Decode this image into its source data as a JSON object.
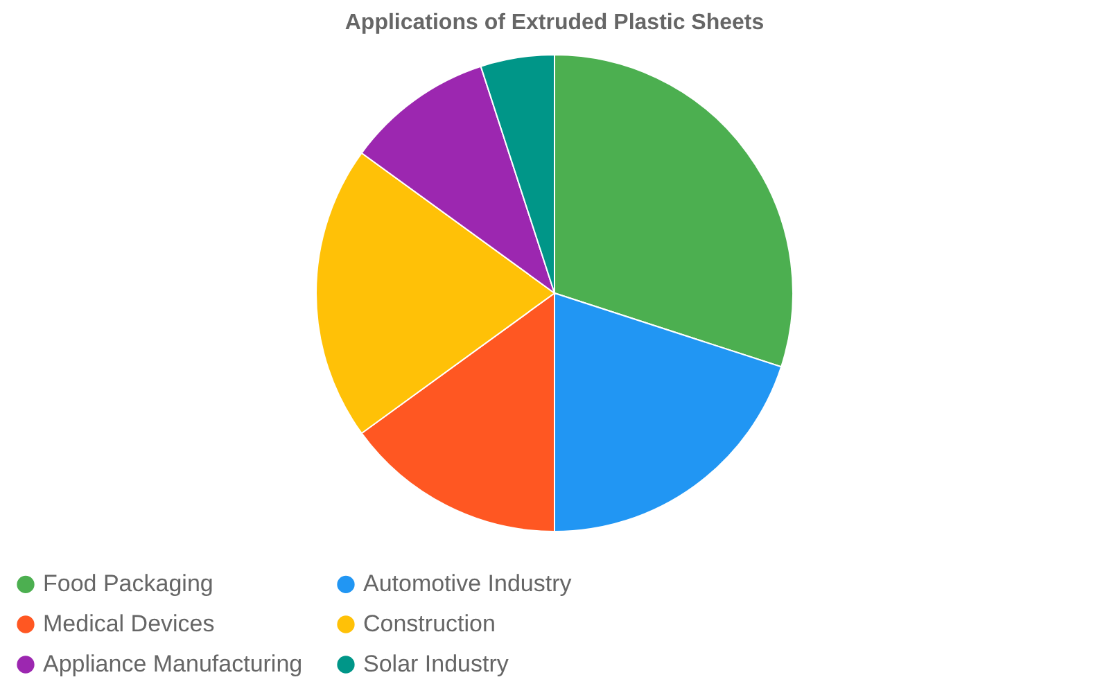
{
  "chart_data": {
    "type": "pie",
    "title": "Applications of Extruded Plastic Sheets",
    "categories": [
      "Food Packaging",
      "Automotive Industry",
      "Medical Devices",
      "Construction",
      "Appliance Manufacturing",
      "Solar Industry"
    ],
    "values": [
      30,
      20,
      15,
      20,
      10,
      5
    ],
    "colors": [
      "#4caf50",
      "#2196f3",
      "#ff5722",
      "#ffc107",
      "#9c27b0",
      "#009688"
    ],
    "legend": "bottom"
  }
}
